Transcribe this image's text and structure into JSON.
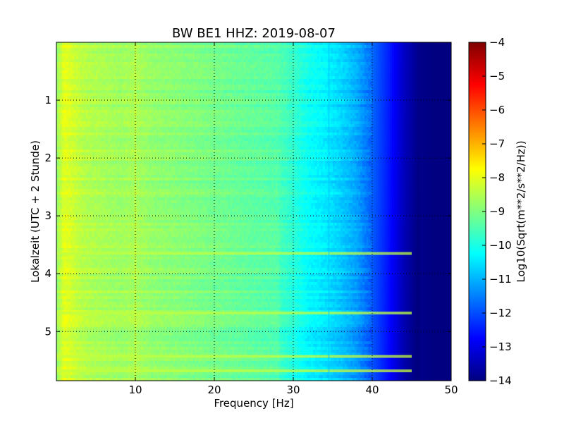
{
  "chart_data": {
    "type": "heatmap",
    "title": "BW BE1 HHZ: 2019-08-07",
    "xlabel": "Frequency [Hz]",
    "ylabel": "Lokalzeit (UTC + 2 Stunde)",
    "xlim": [
      0,
      50
    ],
    "ylim": [
      0,
      5.85
    ],
    "y_inverted": true,
    "x_ticks": [
      10,
      20,
      30,
      40,
      50
    ],
    "x_tick_labels": [
      "10",
      "20",
      "30",
      "40",
      "50"
    ],
    "y_ticks": [
      1,
      2,
      3,
      4,
      5
    ],
    "y_tick_labels": [
      "1",
      "2",
      "3",
      "4",
      "5"
    ],
    "grid": true,
    "colormap": "jet",
    "colorbar": {
      "label": "Log10(Sqrt(m**2/s**2/Hz))",
      "range": [
        -14,
        -4
      ],
      "ticks": [
        -4,
        -5,
        -6,
        -7,
        -8,
        -9,
        -10,
        -11,
        -12,
        -13,
        -14
      ],
      "tick_labels": [
        "−4",
        "−5",
        "−6",
        "−7",
        "−8",
        "−9",
        "−10",
        "−11",
        "−12",
        "−13",
        "−14"
      ]
    },
    "frequency_profile": {
      "frequency_hz": [
        0,
        1,
        2,
        3,
        4,
        6,
        8,
        10,
        12,
        15,
        20,
        25,
        28,
        30,
        32,
        34,
        36,
        38,
        40,
        42,
        44,
        46,
        48,
        50
      ],
      "log10_amplitude": [
        -8.8,
        -8.0,
        -8.2,
        -8.4,
        -8.5,
        -8.6,
        -8.7,
        -8.6,
        -8.8,
        -8.9,
        -9.1,
        -9.3,
        -9.4,
        -9.7,
        -10.1,
        -10.3,
        -10.6,
        -11.0,
        -11.7,
        -12.4,
        -13.3,
        -13.9,
        -14.0,
        -14.0
      ]
    },
    "line_features": [
      {
        "frequency_hz": 34.5,
        "log10_amplitude": -10.8
      },
      {
        "frequency_hz": 10,
        "log10_amplitude": -8.1
      }
    ],
    "horizontal_features": [
      {
        "time_h": 3.65,
        "log10_amplitude": -8.4
      },
      {
        "time_h": 4.68,
        "log10_amplitude": -8.4
      },
      {
        "time_h": 5.43,
        "log10_amplitude": -8.3
      },
      {
        "time_h": 5.68,
        "log10_amplitude": -8.3
      }
    ]
  }
}
